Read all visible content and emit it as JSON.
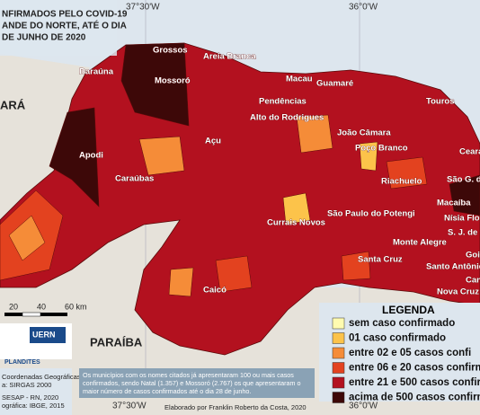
{
  "title": {
    "lines": [
      "NFIRMADOS PELO COVID-19",
      "ANDE DO NORTE, ATÉ O DIA",
      "DE JUNHO DE 2020"
    ]
  },
  "coordinates": {
    "top": [
      "37°30'W",
      "36°0'W"
    ],
    "bottom": [
      "37°30'W",
      "36°0'W"
    ]
  },
  "states": [
    "ARÁ",
    "PARAÍBA"
  ],
  "cities": [
    "Grossos",
    "Areia Branca",
    "Baraúna",
    "Mossoró",
    "Macau",
    "Guamaré",
    "Pendências",
    "Alto do Rodrigues",
    "Touros",
    "Açu",
    "João Câmara",
    "Poço Branco",
    "Apodi",
    "Caraúbas",
    "Ceará",
    "São G. d",
    "Riachuelo",
    "Macaíba",
    "Nísia Flo",
    "S. J. de Mi",
    "São Paulo do Potengi",
    "Monte Alegre",
    "Currais Novos",
    "Santa Cruz",
    "Goia",
    "Santo Antônio",
    "Can",
    "Nova Cruz",
    "Caicó"
  ],
  "scale": [
    "20",
    "40",
    "60 km"
  ],
  "legend": {
    "title": "LEGENDA",
    "items": [
      {
        "label": "sem caso confirmado",
        "color": "#fffbb0"
      },
      {
        "label": "01 caso confirmado",
        "color": "#fcc34a"
      },
      {
        "label": "entre 02 e 05 casos confi",
        "color": "#f58c38"
      },
      {
        "label": "entre 06 e 20 casos confirm",
        "color": "#e3421f"
      },
      {
        "label": "entre 21 e 500 casos confirm",
        "color": "#b3111f"
      },
      {
        "label": "acima de 500 casos confirm",
        "color": "#3d0808"
      }
    ]
  },
  "credits": {
    "lines": [
      "Coordenadas Geográficas",
      "a: SIRGAS 2000",
      "SESAP - RN, 2020",
      "ográfica: IBGE, 2015"
    ],
    "logos": [
      "UERN",
      "PLANDITES"
    ]
  },
  "note": {
    "lines": [
      "Os municípios com os nomes citados já apresentaram 100 ou mais casos",
      "confirmados, sendo Natal (1.357) e Mossoró (2.767) os que apresentaram o",
      "maior número de casos confirmados até o dia 28 de junho."
    ]
  },
  "author": "Elaborado por Franklin Roberto da Costa, 2020"
}
